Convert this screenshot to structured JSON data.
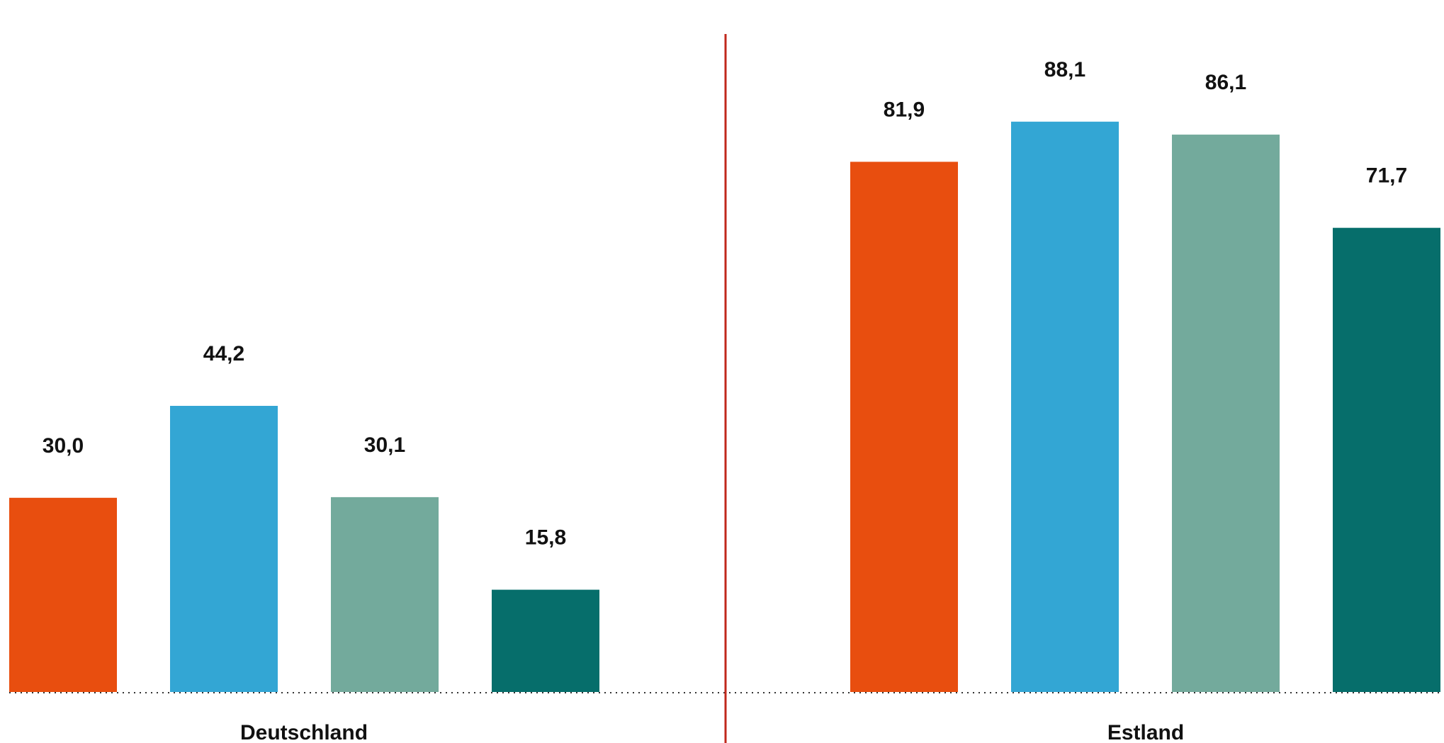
{
  "chart_data": {
    "type": "bar",
    "title": "",
    "xlabel": "",
    "ylabel": "",
    "categories": [
      "Deutschland",
      "Estland"
    ],
    "series": [
      {
        "values": [
          30.0,
          81.9
        ],
        "labels": [
          "30,0",
          "81,9"
        ],
        "color": "#e84e0f"
      },
      {
        "values": [
          44.2,
          88.1
        ],
        "labels": [
          "44,2",
          "88,1"
        ],
        "color": "#33a6d4"
      },
      {
        "values": [
          30.1,
          86.1
        ],
        "labels": [
          "30,1",
          "86,1"
        ],
        "color": "#73aa9c"
      },
      {
        "values": [
          15.8,
          71.7
        ],
        "labels": [
          "15,8",
          "71,7"
        ],
        "color": "#066e6b"
      }
    ],
    "ylim": [
      0,
      100
    ],
    "grid": false,
    "legend": "none",
    "separator_color": "#c0281c",
    "baseline_color": "#333333"
  }
}
